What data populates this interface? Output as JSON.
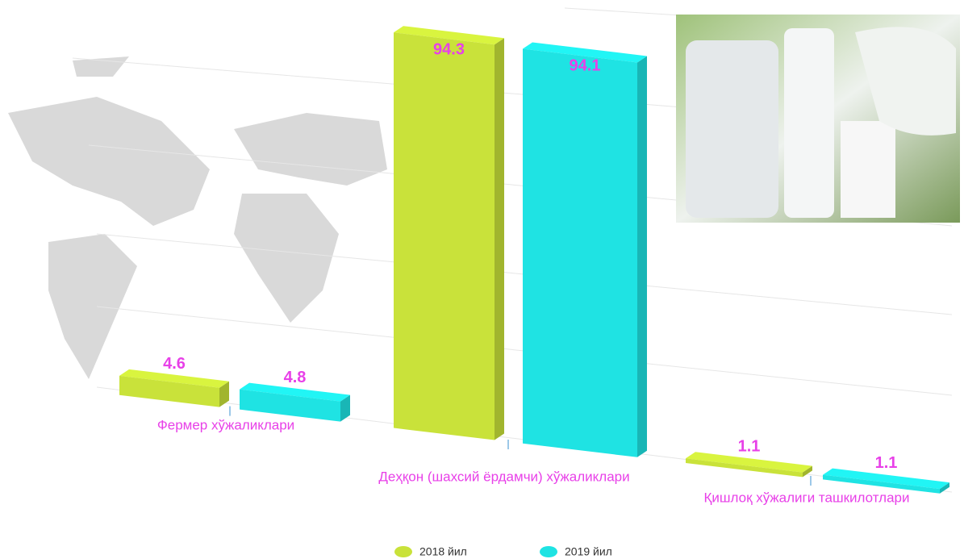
{
  "chart_data": {
    "type": "bar3d",
    "categories": [
      "Фермер хўжаликлари",
      "Деҳқон (шахсий ёрдамчи) хўжаликлари",
      "Қишлоқ хўжалиги ташкилотлари"
    ],
    "series": [
      {
        "name": "2018 йил",
        "color": "#c9e23a",
        "values": [
          4.6,
          94.3,
          1.1
        ]
      },
      {
        "name": "2019 йил",
        "color": "#1fe3e3",
        "values": [
          4.8,
          94.1,
          1.1
        ]
      }
    ],
    "ylim": [
      0,
      100
    ],
    "legend": "bottom"
  }
}
